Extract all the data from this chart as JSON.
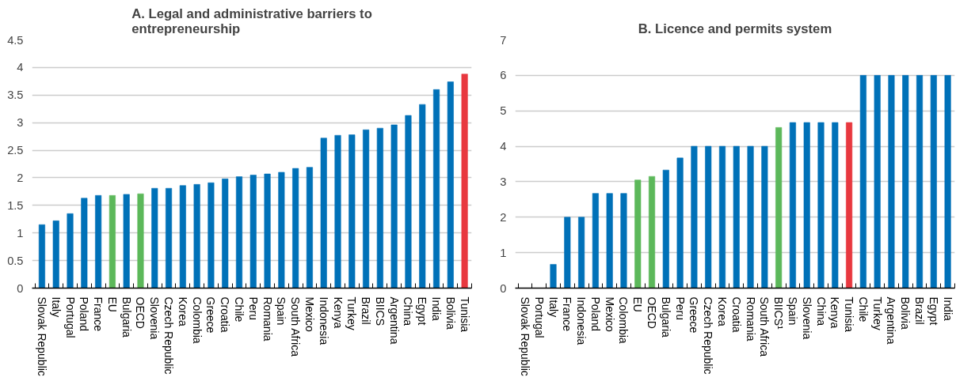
{
  "chart_data": [
    {
      "type": "bar",
      "title": "A. Legal and administrative barriers to entrepreneurship",
      "categories": [
        "Slovak Republic",
        "Italy",
        "Portugal",
        "Poland",
        "France",
        "EU",
        "Bulgaria",
        "OECD",
        "Slovenia",
        "Czech Republic",
        "Korea",
        "Colombia",
        "Greece",
        "Croatia",
        "Chile",
        "Peru",
        "Romania",
        "Spain",
        "South Africa",
        "Mexico",
        "Indonesia",
        "Kenya",
        "Turkey",
        "Brazil",
        "BIICS",
        "Argentina",
        "China",
        "Egypt",
        "India",
        "Bolivia",
        "Tunisia"
      ],
      "values": [
        1.15,
        1.22,
        1.35,
        1.63,
        1.68,
        1.68,
        1.7,
        1.71,
        1.81,
        1.81,
        1.86,
        1.88,
        1.91,
        1.98,
        2.02,
        2.05,
        2.07,
        2.1,
        2.17,
        2.19,
        2.72,
        2.77,
        2.78,
        2.87,
        2.9,
        2.96,
        3.13,
        3.33,
        3.6,
        3.74,
        3.88
      ],
      "colors": [
        "#0071b8",
        "#0071b8",
        "#0071b8",
        "#0071b8",
        "#0071b8",
        "#5cb85a",
        "#0071b8",
        "#5cb85a",
        "#0071b8",
        "#0071b8",
        "#0071b8",
        "#0071b8",
        "#0071b8",
        "#0071b8",
        "#0071b8",
        "#0071b8",
        "#0071b8",
        "#0071b8",
        "#0071b8",
        "#0071b8",
        "#0071b8",
        "#0071b8",
        "#0071b8",
        "#0071b8",
        "#0071b8",
        "#0071b8",
        "#0071b8",
        "#0071b8",
        "#0071b8",
        "#0071b8",
        "#e8383f"
      ],
      "ylim": [
        0,
        4.5
      ],
      "yticks": [
        0,
        0.5,
        1,
        1.5,
        2,
        2.5,
        3,
        3.5,
        4,
        4.5
      ],
      "grid": "y"
    },
    {
      "type": "bar",
      "title": "B. Licence and permits system",
      "categories": [
        "Slovak Republic",
        "Portugal",
        "Italy",
        "France",
        "Indonesia",
        "Poland",
        "Mexico",
        "Colombia",
        "EU",
        "OECD",
        "Bulgaria",
        "Peru",
        "Greece",
        "Czech Republic",
        "Korea",
        "Croatia",
        "Romania",
        "South Africa",
        "BIICS¹",
        "Spain",
        "Slovenia",
        "China",
        "Kenya",
        "Tunisia",
        "Chile",
        "Turkey",
        "Argentina",
        "Bolivia",
        "Brazil",
        "Egypt",
        "India"
      ],
      "values": [
        0,
        0,
        0.67,
        2,
        2,
        2.67,
        2.67,
        2.67,
        3.05,
        3.15,
        3.33,
        3.67,
        4,
        4,
        4,
        4,
        4,
        4,
        4.53,
        4.67,
        4.67,
        4.67,
        4.67,
        4.67,
        6,
        6,
        6,
        6,
        6,
        6,
        6
      ],
      "colors": [
        "#0071b8",
        "#0071b8",
        "#0071b8",
        "#0071b8",
        "#0071b8",
        "#0071b8",
        "#0071b8",
        "#0071b8",
        "#5cb85a",
        "#5cb85a",
        "#0071b8",
        "#0071b8",
        "#0071b8",
        "#0071b8",
        "#0071b8",
        "#0071b8",
        "#0071b8",
        "#0071b8",
        "#5cb85a",
        "#0071b8",
        "#0071b8",
        "#0071b8",
        "#0071b8",
        "#e8383f",
        "#0071b8",
        "#0071b8",
        "#0071b8",
        "#0071b8",
        "#0071b8",
        "#0071b8",
        "#0071b8"
      ],
      "ylim": [
        0,
        7
      ],
      "yticks": [
        0,
        1,
        2,
        3,
        4,
        5,
        6,
        7
      ],
      "grid": "y"
    }
  ]
}
